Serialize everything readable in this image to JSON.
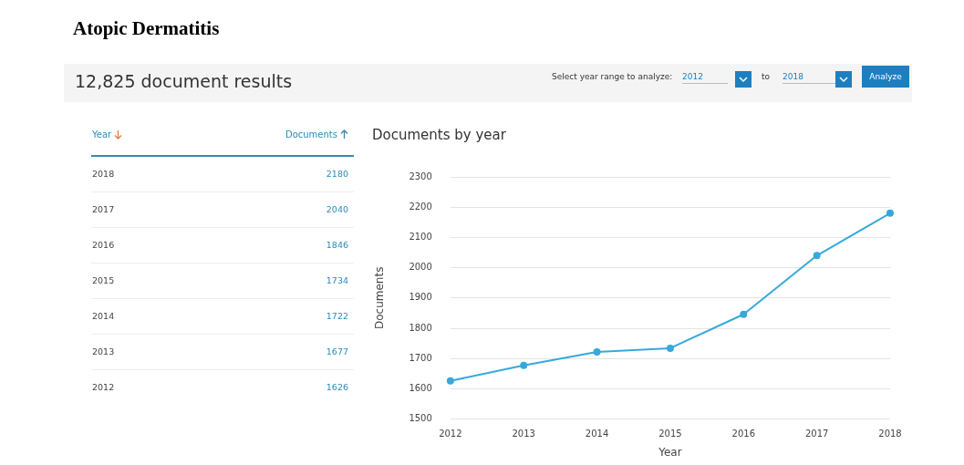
{
  "chart_data": [
    {
      "type": "heatmap",
      "title": "Atopic Dermatitis",
      "subtitle": "12,825 document results",
      "annotations": [
        "Select year range to analyze:",
        "2012",
        "to",
        "2018",
        "Analyze",
        "Year"
      ],
      "categories": [
        "Documents"
      ],
      "y_categories": [
        "2018",
        "2017",
        "2016",
        "2015",
        "2014",
        "2013",
        "2012"
      ],
      "cells": [
        [
          2180
        ],
        [
          2040
        ],
        [
          1846
        ],
        [
          1734
        ],
        [
          1722
        ],
        [
          1677
        ],
        [
          1626
        ]
      ],
      "data_labels": true
    },
    {
      "type": "line",
      "title": "Documents by year",
      "categories": [
        "2012",
        "2013",
        "2014",
        "2015",
        "2016",
        "2017",
        "2018"
      ],
      "series": [
        {
          "color": "#36a9dc",
          "values": [
            1626,
            1677,
            1722,
            1734,
            1846,
            2040,
            2180
          ]
        }
      ],
      "xlabel": "Year",
      "ylabel": "Documents",
      "ylim": [
        1500,
        2300
      ],
      "yticks": [
        1500,
        1600,
        1700,
        1800,
        1900,
        2000,
        2100,
        2200,
        2300
      ],
      "grid": "y",
      "legend": false,
      "marker": "circle",
      "line_style": "solid"
    }
  ]
}
